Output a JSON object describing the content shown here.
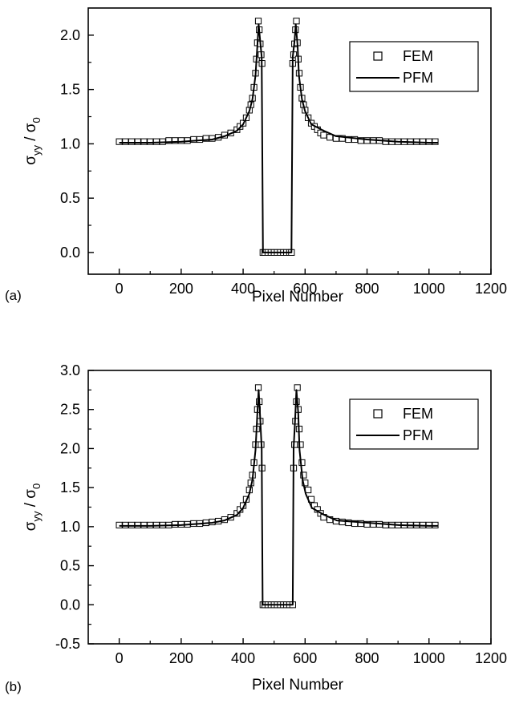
{
  "chart_data": [
    {
      "type": "scatter",
      "panel_label": "(a)",
      "xlabel": "Pixel Number",
      "ylabel": {
        "main": "σ",
        "main_sub": "yy",
        "sep": " / ",
        "denom": "σ",
        "denom_sub": "0"
      },
      "xlim": [
        -100,
        1200
      ],
      "ylim": [
        -0.2,
        2.25
      ],
      "xticks": [
        0,
        200,
        400,
        600,
        800,
        1000,
        1200
      ],
      "xtick_labels": [
        "0",
        "200",
        "400",
        "600",
        "800",
        "1000",
        "1200"
      ],
      "yticks": [
        0.0,
        0.5,
        1.0,
        1.5,
        2.0
      ],
      "ytick_labels": [
        "0.0",
        "0.5",
        "1.0",
        "1.5",
        "2.0"
      ],
      "legend": {
        "position": "top-right",
        "entries": [
          "FEM",
          "PFM"
        ]
      },
      "series": [
        {
          "name": "FEM",
          "marker": "square",
          "x": [
            0,
            20,
            40,
            60,
            80,
            100,
            120,
            140,
            160,
            180,
            200,
            220,
            240,
            260,
            280,
            300,
            320,
            340,
            360,
            380,
            390,
            400,
            410,
            420,
            425,
            430,
            435,
            440,
            443,
            446,
            449,
            452,
            455,
            458,
            461,
            464,
            470,
            480,
            490,
            500,
            510,
            520,
            530,
            540,
            550,
            556,
            560,
            563,
            566,
            569,
            572,
            575,
            578,
            581,
            585,
            590,
            595,
            600,
            610,
            620,
            630,
            640,
            650,
            660,
            680,
            700,
            720,
            740,
            760,
            780,
            800,
            820,
            840,
            860,
            880,
            900,
            920,
            940,
            960,
            980,
            1000,
            1020
          ],
          "y": [
            1.02,
            1.02,
            1.02,
            1.02,
            1.02,
            1.02,
            1.02,
            1.02,
            1.03,
            1.03,
            1.03,
            1.03,
            1.04,
            1.04,
            1.05,
            1.05,
            1.06,
            1.08,
            1.1,
            1.13,
            1.16,
            1.19,
            1.24,
            1.31,
            1.36,
            1.42,
            1.52,
            1.65,
            1.78,
            1.93,
            2.13,
            2.05,
            1.92,
            1.82,
            1.74,
            0.0,
            0.0,
            0.0,
            0.0,
            0.0,
            0.0,
            0.0,
            0.0,
            0.0,
            0.0,
            0.0,
            1.74,
            1.82,
            1.92,
            2.05,
            2.13,
            1.93,
            1.78,
            1.65,
            1.52,
            1.42,
            1.36,
            1.31,
            1.24,
            1.19,
            1.16,
            1.13,
            1.1,
            1.08,
            1.06,
            1.05,
            1.05,
            1.04,
            1.04,
            1.03,
            1.03,
            1.03,
            1.03,
            1.02,
            1.02,
            1.02,
            1.02,
            1.02,
            1.02,
            1.02,
            1.02,
            1.02
          ]
        },
        {
          "name": "PFM",
          "marker": "line",
          "x": [
            0,
            100,
            200,
            300,
            340,
            380,
            400,
            420,
            430,
            440,
            446,
            450,
            455,
            460,
            464,
            470,
            480,
            500,
            520,
            540,
            556,
            560,
            566,
            570,
            576,
            580,
            590,
            600,
            620,
            660,
            700,
            800,
            900,
            1000,
            1030
          ],
          "y": [
            1.01,
            1.01,
            1.02,
            1.04,
            1.07,
            1.12,
            1.18,
            1.3,
            1.41,
            1.63,
            1.9,
            2.1,
            1.95,
            1.8,
            0.0,
            0.0,
            0.0,
            0.0,
            0.0,
            0.0,
            0.0,
            1.8,
            1.95,
            2.1,
            1.9,
            1.63,
            1.41,
            1.3,
            1.18,
            1.12,
            1.07,
            1.04,
            1.02,
            1.01,
            1.01
          ]
        }
      ]
    },
    {
      "type": "scatter",
      "panel_label": "(b)",
      "xlabel": "Pixel Number",
      "ylabel": {
        "main": "σ",
        "main_sub": "yy",
        "sep": " / ",
        "denom": "σ",
        "denom_sub": "0"
      },
      "xlim": [
        -100,
        1200
      ],
      "ylim": [
        -0.5,
        3.0
      ],
      "xticks": [
        0,
        200,
        400,
        600,
        800,
        1000,
        1200
      ],
      "xtick_labels": [
        "0",
        "200",
        "400",
        "600",
        "800",
        "1000",
        "1200"
      ],
      "yticks": [
        -0.5,
        0.0,
        0.5,
        1.0,
        1.5,
        2.0,
        2.5,
        3.0
      ],
      "ytick_labels": [
        "-0.5",
        "0.0",
        "0.5",
        "1.0",
        "1.5",
        "2.0",
        "2.5",
        "3.0"
      ],
      "legend": {
        "position": "top-right",
        "entries": [
          "FEM",
          "PFM"
        ]
      },
      "series": [
        {
          "name": "FEM",
          "marker": "square",
          "x": [
            0,
            20,
            40,
            60,
            80,
            100,
            120,
            140,
            160,
            180,
            200,
            220,
            240,
            260,
            280,
            300,
            320,
            340,
            360,
            380,
            390,
            400,
            410,
            420,
            425,
            430,
            435,
            440,
            443,
            446,
            449,
            452,
            455,
            458,
            461,
            464,
            470,
            480,
            490,
            500,
            510,
            520,
            530,
            540,
            550,
            560,
            563,
            566,
            569,
            572,
            575,
            578,
            581,
            585,
            590,
            595,
            600,
            610,
            620,
            630,
            640,
            650,
            660,
            680,
            700,
            720,
            740,
            760,
            780,
            800,
            820,
            840,
            860,
            880,
            900,
            920,
            940,
            960,
            980,
            1000,
            1020
          ],
          "y": [
            1.02,
            1.02,
            1.02,
            1.02,
            1.02,
            1.02,
            1.02,
            1.02,
            1.02,
            1.03,
            1.03,
            1.03,
            1.04,
            1.04,
            1.05,
            1.06,
            1.07,
            1.09,
            1.12,
            1.17,
            1.22,
            1.27,
            1.35,
            1.47,
            1.56,
            1.66,
            1.82,
            2.05,
            2.25,
            2.5,
            2.78,
            2.6,
            2.35,
            2.05,
            1.75,
            0.0,
            0.0,
            0.0,
            0.0,
            0.0,
            0.0,
            0.0,
            0.0,
            0.0,
            0.0,
            0.0,
            1.75,
            2.05,
            2.35,
            2.6,
            2.78,
            2.5,
            2.25,
            2.05,
            1.82,
            1.66,
            1.56,
            1.47,
            1.35,
            1.27,
            1.22,
            1.17,
            1.12,
            1.09,
            1.07,
            1.06,
            1.05,
            1.04,
            1.04,
            1.03,
            1.03,
            1.03,
            1.02,
            1.02,
            1.02,
            1.02,
            1.02,
            1.02,
            1.02,
            1.02,
            1.02
          ]
        },
        {
          "name": "PFM",
          "marker": "line",
          "x": [
            0,
            100,
            200,
            300,
            340,
            380,
            400,
            420,
            430,
            440,
            446,
            450,
            455,
            460,
            463,
            470,
            480,
            500,
            520,
            540,
            560,
            563,
            568,
            572,
            578,
            582,
            592,
            602,
            622,
            662,
            702,
            802,
            902,
            1002,
            1030
          ],
          "y": [
            1.01,
            1.01,
            1.02,
            1.05,
            1.08,
            1.15,
            1.24,
            1.42,
            1.6,
            1.98,
            2.45,
            2.75,
            2.4,
            2.0,
            0.0,
            0.0,
            0.0,
            0.0,
            0.0,
            0.0,
            0.0,
            2.0,
            2.4,
            2.75,
            2.45,
            1.98,
            1.6,
            1.42,
            1.24,
            1.15,
            1.08,
            1.05,
            1.02,
            1.01,
            1.01
          ]
        }
      ]
    }
  ]
}
